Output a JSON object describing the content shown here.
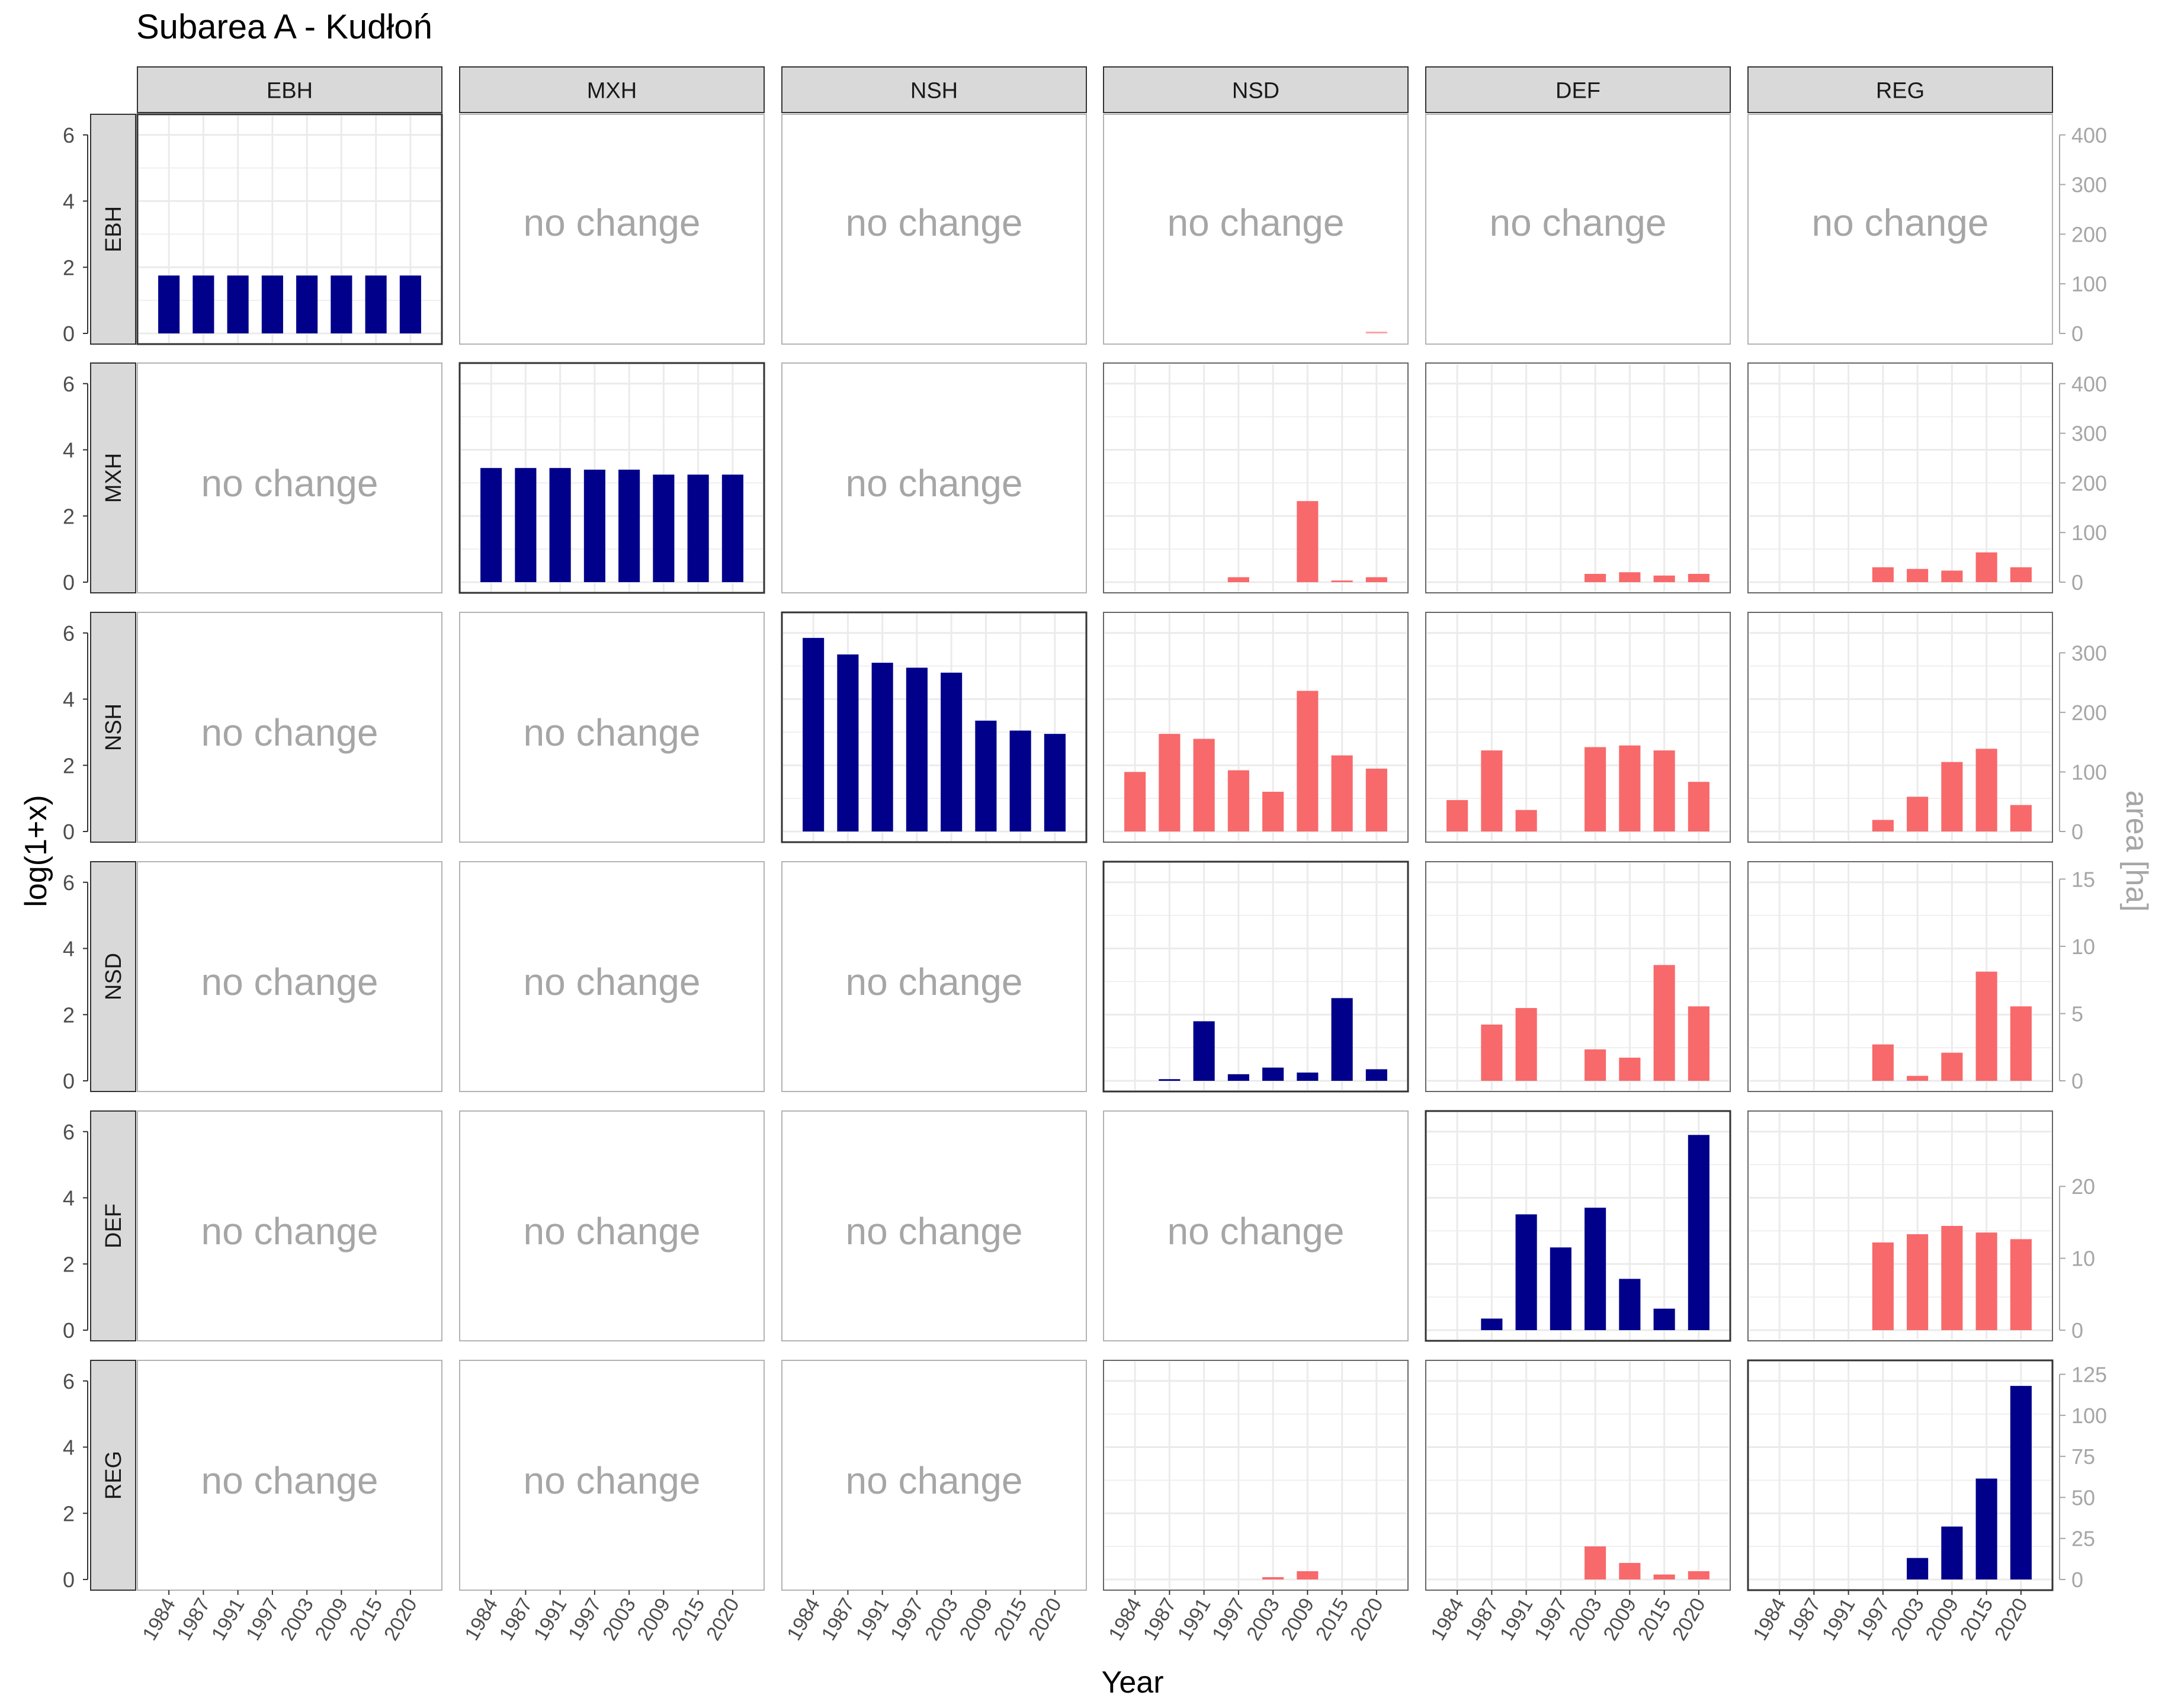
{
  "chart_data": {
    "type": "bar",
    "title": "Subarea A - Kudłoń",
    "xlabel": "Year",
    "ylabel_left": "log(1+x)",
    "ylabel_right": "area [ha]",
    "years": [
      1984,
      1987,
      1991,
      1997,
      2003,
      2009,
      2015,
      2020
    ],
    "year_ticks": [
      "1984",
      "1987",
      "1991",
      "1997",
      "2003",
      "2009",
      "2015",
      "2020"
    ],
    "column_strips": [
      "EBH",
      "MXH",
      "NSH",
      "NSD",
      "DEF",
      "REG"
    ],
    "row_strips": [
      "EBH",
      "MXH",
      "NSH",
      "NSD",
      "DEF",
      "REG"
    ],
    "left_axis": {
      "ylim": [
        0,
        6.3
      ],
      "ticks": [
        "0",
        "2",
        "4",
        "6"
      ]
    },
    "no_change_label": "no change",
    "colors": {
      "persistence": "#00008B",
      "change": "#F8696B",
      "grid": "#EBEBEB",
      "strip": "#D9D9D9",
      "no_change_text": "#A6A6A6",
      "right_axis_text": "#A6A6A6"
    },
    "right_axes": [
      {
        "row": "EBH",
        "max": 420,
        "ticks": [
          0,
          100,
          200,
          300,
          400
        ]
      },
      {
        "row": "MXH",
        "max": 420,
        "ticks": [
          0,
          100,
          200,
          300,
          400
        ]
      },
      {
        "row": "NSH",
        "max": 350,
        "ticks": [
          0,
          100,
          200,
          300
        ]
      },
      {
        "row": "NSD",
        "max": 15.5,
        "ticks": [
          0,
          5,
          10,
          15
        ]
      },
      {
        "row": "DEF",
        "max": 29,
        "ticks": [
          0,
          10,
          20
        ]
      },
      {
        "row": "REG",
        "max": 127,
        "ticks": [
          0,
          25,
          50,
          75,
          100,
          125
        ]
      }
    ],
    "series": [
      {
        "row": "EBH",
        "col": "EBH",
        "kind": "persistence",
        "values": [
          1.75,
          1.75,
          1.75,
          1.75,
          1.75,
          1.75,
          1.75,
          1.75
        ]
      },
      {
        "row": "EBH",
        "col": "MXH",
        "kind": "none"
      },
      {
        "row": "EBH",
        "col": "NSH",
        "kind": "none"
      },
      {
        "row": "EBH",
        "col": "NSD",
        "kind": "none",
        "values": [
          0,
          0,
          0,
          0,
          0,
          0,
          0,
          0.02
        ]
      },
      {
        "row": "EBH",
        "col": "DEF",
        "kind": "none"
      },
      {
        "row": "EBH",
        "col": "REG",
        "kind": "none"
      },
      {
        "row": "MXH",
        "col": "EBH",
        "kind": "none"
      },
      {
        "row": "MXH",
        "col": "MXH",
        "kind": "persistence",
        "values": [
          3.45,
          3.45,
          3.45,
          3.4,
          3.4,
          3.25,
          3.25,
          3.25
        ]
      },
      {
        "row": "MXH",
        "col": "NSH",
        "kind": "none"
      },
      {
        "row": "MXH",
        "col": "NSD",
        "kind": "change",
        "values": [
          0,
          0,
          0,
          0.15,
          0,
          2.45,
          0.05,
          0.15
        ]
      },
      {
        "row": "MXH",
        "col": "DEF",
        "kind": "change",
        "values": [
          0,
          0,
          0,
          0,
          0.25,
          0.3,
          0.2,
          0.25
        ]
      },
      {
        "row": "MXH",
        "col": "REG",
        "kind": "change",
        "values": [
          0,
          0,
          0,
          0.45,
          0.4,
          0.35,
          0.9,
          0.45
        ]
      },
      {
        "row": "NSH",
        "col": "EBH",
        "kind": "none"
      },
      {
        "row": "NSH",
        "col": "MXH",
        "kind": "none"
      },
      {
        "row": "NSH",
        "col": "NSH",
        "kind": "persistence",
        "values": [
          5.85,
          5.35,
          5.1,
          4.95,
          4.8,
          3.35,
          3.05,
          2.95
        ]
      },
      {
        "row": "NSH",
        "col": "NSD",
        "kind": "change",
        "values": [
          1.8,
          2.95,
          2.8,
          1.85,
          1.2,
          4.25,
          2.3,
          1.9
        ]
      },
      {
        "row": "NSH",
        "col": "DEF",
        "kind": "change",
        "values": [
          0.95,
          2.45,
          0.65,
          0,
          2.55,
          2.6,
          2.45,
          1.5
        ]
      },
      {
        "row": "NSH",
        "col": "REG",
        "kind": "change",
        "values": [
          0,
          0,
          0,
          0.35,
          1.05,
          2.1,
          2.5,
          0.8
        ]
      },
      {
        "row": "NSD",
        "col": "EBH",
        "kind": "none"
      },
      {
        "row": "NSD",
        "col": "MXH",
        "kind": "none"
      },
      {
        "row": "NSD",
        "col": "NSH",
        "kind": "none"
      },
      {
        "row": "NSD",
        "col": "NSD",
        "kind": "persistence",
        "values": [
          0,
          0.05,
          1.8,
          0.2,
          0.4,
          0.25,
          2.5,
          0.35
        ]
      },
      {
        "row": "NSD",
        "col": "DEF",
        "kind": "change",
        "values": [
          0,
          1.7,
          2.2,
          0,
          0.95,
          0.7,
          3.5,
          2.25
        ]
      },
      {
        "row": "NSD",
        "col": "REG",
        "kind": "change",
        "values": [
          0,
          0,
          0,
          1.1,
          0.15,
          0.85,
          3.3,
          2.25
        ]
      },
      {
        "row": "DEF",
        "col": "EBH",
        "kind": "none"
      },
      {
        "row": "DEF",
        "col": "MXH",
        "kind": "none"
      },
      {
        "row": "DEF",
        "col": "NSH",
        "kind": "none"
      },
      {
        "row": "DEF",
        "col": "NSD",
        "kind": "none"
      },
      {
        "row": "DEF",
        "col": "DEF",
        "kind": "persistence",
        "values": [
          0,
          0.35,
          3.5,
          2.5,
          3.7,
          1.55,
          0.65,
          5.9
        ]
      },
      {
        "row": "DEF",
        "col": "REG",
        "kind": "change",
        "values": [
          0,
          0,
          0,
          2.65,
          2.9,
          3.15,
          2.95,
          2.75
        ]
      },
      {
        "row": "REG",
        "col": "EBH",
        "kind": "none"
      },
      {
        "row": "REG",
        "col": "MXH",
        "kind": "none"
      },
      {
        "row": "REG",
        "col": "NSH",
        "kind": "none"
      },
      {
        "row": "REG",
        "col": "NSD",
        "kind": "change",
        "values": [
          0,
          0,
          0,
          0,
          0.07,
          0.25,
          0,
          0
        ]
      },
      {
        "row": "REG",
        "col": "DEF",
        "kind": "change",
        "values": [
          0,
          0,
          0,
          0,
          1.0,
          0.5,
          0.15,
          0.25
        ]
      },
      {
        "row": "REG",
        "col": "REG",
        "kind": "persistence",
        "values": [
          0,
          0,
          0,
          0,
          0.65,
          1.6,
          3.05,
          5.85
        ]
      }
    ]
  }
}
